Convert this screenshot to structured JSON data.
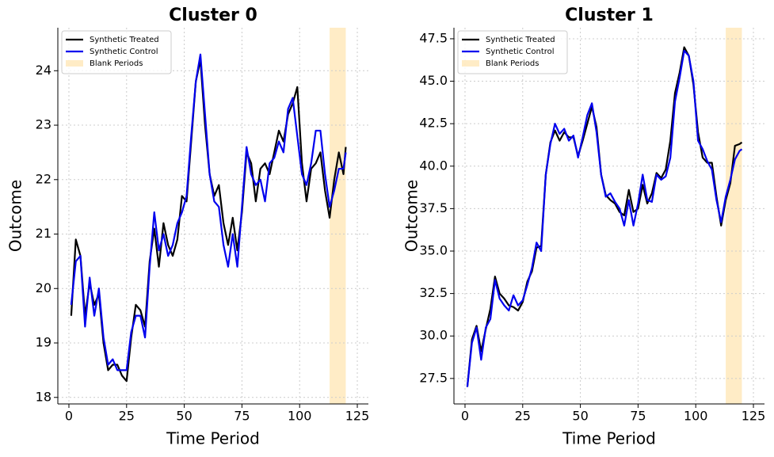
{
  "chart_data": [
    {
      "type": "line",
      "title": "Cluster 0",
      "x_label": "Time Period",
      "y_label": "Outcome",
      "x": [
        1,
        3,
        5,
        7,
        9,
        11,
        13,
        15,
        17,
        19,
        21,
        23,
        25,
        27,
        29,
        31,
        33,
        35,
        37,
        39,
        41,
        43,
        45,
        47,
        49,
        51,
        53,
        55,
        57,
        59,
        61,
        63,
        65,
        67,
        69,
        71,
        73,
        75,
        77,
        79,
        81,
        83,
        85,
        87,
        89,
        91,
        93,
        95,
        97,
        99,
        101,
        103,
        105,
        107,
        109,
        111,
        113,
        115,
        117,
        119,
        120
      ],
      "series": [
        {
          "name": "Synthetic Treated",
          "color": "#000000",
          "values": [
            19.5,
            20.9,
            20.6,
            19.5,
            20.1,
            19.7,
            19.9,
            19.0,
            18.5,
            18.6,
            18.6,
            18.4,
            18.3,
            19.1,
            19.7,
            19.6,
            19.3,
            20.5,
            21.1,
            20.4,
            21.2,
            20.8,
            20.6,
            20.9,
            21.7,
            21.6,
            22.7,
            23.8,
            24.2,
            23.0,
            22.1,
            21.7,
            21.9,
            21.2,
            20.8,
            21.3,
            20.7,
            21.4,
            22.5,
            22.3,
            21.6,
            22.2,
            22.3,
            22.1,
            22.5,
            22.9,
            22.7,
            23.2,
            23.4,
            23.7,
            22.3,
            21.6,
            22.2,
            22.3,
            22.5,
            21.8,
            21.3,
            22.0,
            22.5,
            22.1,
            22.6
          ]
        },
        {
          "name": "Synthetic Control",
          "color": "#0000ee",
          "values": [
            19.7,
            20.5,
            20.6,
            19.3,
            20.2,
            19.5,
            20.0,
            19.1,
            18.6,
            18.7,
            18.5,
            18.5,
            18.5,
            19.2,
            19.5,
            19.5,
            19.1,
            20.4,
            21.4,
            20.7,
            21.0,
            20.6,
            20.8,
            21.2,
            21.4,
            21.7,
            22.8,
            23.8,
            24.3,
            23.2,
            22.1,
            21.6,
            21.5,
            20.8,
            20.4,
            21.0,
            20.4,
            21.5,
            22.6,
            22.1,
            21.9,
            22.0,
            21.6,
            22.3,
            22.4,
            22.7,
            22.5,
            23.3,
            23.5,
            22.8,
            22.1,
            21.9,
            22.3,
            22.9,
            22.9,
            22.1,
            21.5,
            21.8,
            22.2,
            22.2,
            22.5
          ]
        }
      ],
      "shade": {
        "name": "Blank Periods",
        "color": "#ffe0a0",
        "range": [
          113,
          120
        ]
      },
      "xlim": [
        -4.8,
        129.8
      ],
      "xticks": [
        0,
        25,
        50,
        75,
        100,
        125
      ],
      "ylim": [
        17.88,
        24.79
      ],
      "yticks": [
        18,
        19,
        20,
        21,
        22,
        23,
        24
      ],
      "grid": true,
      "legend": "upper left"
    },
    {
      "type": "line",
      "title": "Cluster 1",
      "x_label": "Time Period",
      "y_label": "Outcome",
      "x": [
        1,
        3,
        5,
        7,
        9,
        11,
        13,
        15,
        17,
        19,
        21,
        23,
        25,
        27,
        29,
        31,
        33,
        35,
        37,
        39,
        41,
        43,
        45,
        47,
        49,
        51,
        53,
        55,
        57,
        59,
        61,
        63,
        65,
        67,
        69,
        71,
        73,
        75,
        77,
        79,
        81,
        83,
        85,
        87,
        89,
        91,
        93,
        95,
        97,
        99,
        101,
        103,
        105,
        107,
        109,
        111,
        113,
        115,
        117,
        119,
        120
      ],
      "series": [
        {
          "name": "Synthetic Treated",
          "color": "#000000",
          "values": [
            27.0,
            29.8,
            30.6,
            29.1,
            30.4,
            31.6,
            33.5,
            32.5,
            32.2,
            31.8,
            31.7,
            31.5,
            32.0,
            33.2,
            33.8,
            35.2,
            35.3,
            39.5,
            41.4,
            42.1,
            41.5,
            42.0,
            41.7,
            41.7,
            40.6,
            41.5,
            42.5,
            43.5,
            42.3,
            39.5,
            38.3,
            38.0,
            37.8,
            37.3,
            37.1,
            38.6,
            37.3,
            37.5,
            38.9,
            37.8,
            38.4,
            39.6,
            39.3,
            39.8,
            41.5,
            44.3,
            45.5,
            47.0,
            46.5,
            44.8,
            42.0,
            40.5,
            40.2,
            40.2,
            38.2,
            36.5,
            38.0,
            39.0,
            41.2,
            41.3,
            41.4
          ]
        },
        {
          "name": "Synthetic Control",
          "color": "#0000ee",
          "values": [
            27.0,
            29.6,
            30.5,
            28.6,
            30.5,
            31.0,
            33.3,
            32.2,
            31.8,
            31.5,
            32.4,
            31.8,
            32.1,
            33.0,
            34.0,
            35.5,
            35.0,
            39.5,
            41.3,
            42.5,
            41.9,
            42.2,
            41.5,
            41.8,
            40.5,
            41.7,
            43.0,
            43.7,
            42.0,
            39.5,
            38.2,
            38.4,
            37.9,
            37.5,
            36.5,
            38.0,
            36.5,
            37.8,
            39.5,
            38.0,
            37.9,
            39.5,
            39.2,
            39.4,
            40.5,
            43.8,
            45.2,
            46.8,
            46.5,
            45.0,
            41.5,
            41.0,
            40.3,
            39.8,
            38.0,
            36.7,
            38.2,
            39.2,
            40.4,
            40.9,
            41.0
          ]
        }
      ],
      "shade": {
        "name": "Blank Periods",
        "color": "#ffe0a0",
        "range": [
          113,
          120
        ]
      },
      "xlim": [
        -4.8,
        129.8
      ],
      "xticks": [
        0,
        25,
        50,
        75,
        100,
        125
      ],
      "ylim": [
        26.0,
        48.15
      ],
      "yticks": [
        27.5,
        {
          "value": 30,
          "label": "30.0"
        },
        32.5,
        {
          "value": 35,
          "label": "35.0"
        },
        37.5,
        {
          "value": 40,
          "label": "40.0"
        },
        42.5,
        {
          "value": 45,
          "label": "45.0"
        },
        47.5
      ],
      "grid": true,
      "legend": "upper left"
    }
  ]
}
